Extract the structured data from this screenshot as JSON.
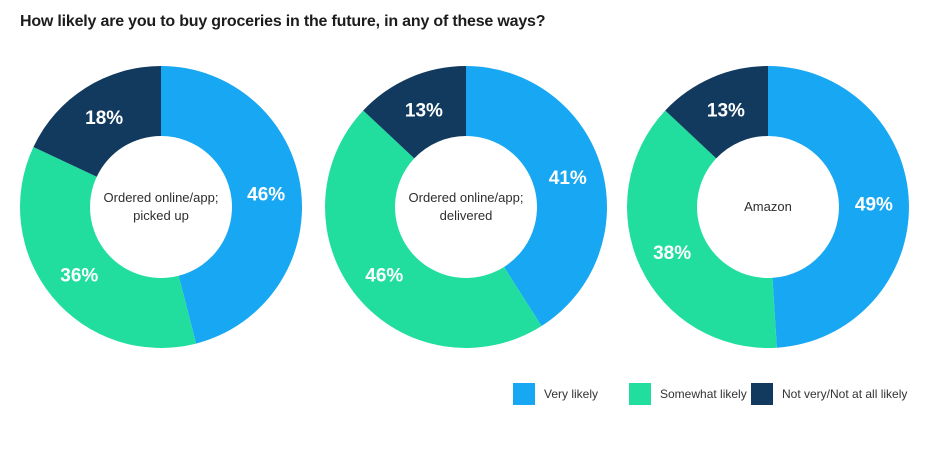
{
  "page": {
    "title": "How likely are you to buy groceries in the future, in any of these ways?"
  },
  "colors": {
    "very_likely": "#18a7f2",
    "somewhat_likely": "#21de9f",
    "not_likely": "#123a5e",
    "slice_label_text": "#ffffff",
    "title_text": "#1c1c1c",
    "center_text": "#2e2e2e",
    "legend_text": "#333333",
    "background": "#ffffff"
  },
  "chart_data": [
    {
      "type": "pie",
      "subtype": "donut",
      "center_label_lines": [
        "Ordered online/app;",
        "picked up"
      ],
      "start_angle_deg": 0,
      "direction": "clockwise",
      "series": [
        {
          "name": "Very likely",
          "value": 46,
          "label": "46%",
          "color": "#18a7f2"
        },
        {
          "name": "Somewhat likely",
          "value": 36,
          "label": "36%",
          "color": "#21de9f"
        },
        {
          "name": "Not very/Not at all likely",
          "value": 18,
          "label": "18%",
          "color": "#123a5e"
        }
      ]
    },
    {
      "type": "pie",
      "subtype": "donut",
      "center_label_lines": [
        "Ordered online/app;",
        "delivered"
      ],
      "start_angle_deg": 0,
      "direction": "clockwise",
      "series": [
        {
          "name": "Very likely",
          "value": 41,
          "label": "41%",
          "color": "#18a7f2"
        },
        {
          "name": "Somewhat likely",
          "value": 46,
          "label": "46%",
          "color": "#21de9f"
        },
        {
          "name": "Not very/Not at all likely",
          "value": 13,
          "label": "13%",
          "color": "#123a5e"
        }
      ]
    },
    {
      "type": "pie",
      "subtype": "donut",
      "center_label_lines": [
        "Amazon"
      ],
      "start_angle_deg": 0,
      "direction": "clockwise",
      "series": [
        {
          "name": "Very likely",
          "value": 49,
          "label": "49%",
          "color": "#18a7f2"
        },
        {
          "name": "Somewhat likely",
          "value": 38,
          "label": "38%",
          "color": "#21de9f"
        },
        {
          "name": "Not very/Not at all likely",
          "value": 13,
          "label": "13%",
          "color": "#123a5e"
        }
      ]
    }
  ],
  "legend": {
    "position": "bottom-right",
    "items": [
      {
        "label": "Very likely",
        "color": "#18a7f2"
      },
      {
        "label": "Somewhat likely",
        "color": "#21de9f"
      },
      {
        "label": "Not very/Not at all likely",
        "color": "#123a5e"
      }
    ]
  }
}
